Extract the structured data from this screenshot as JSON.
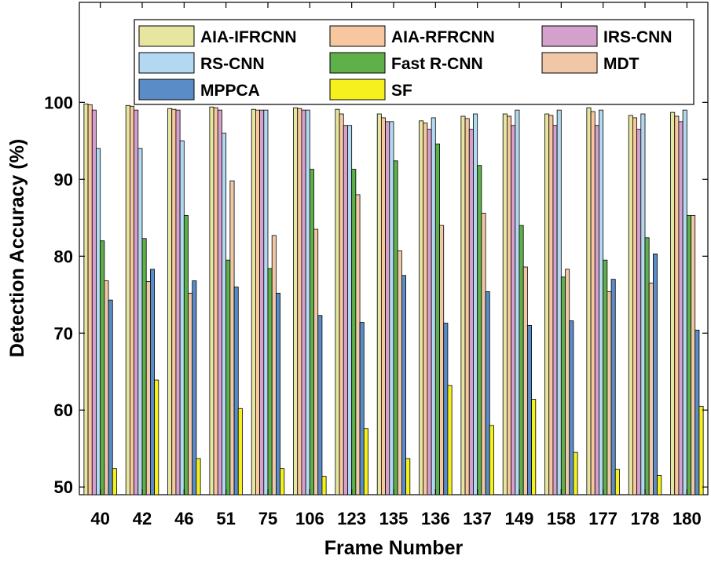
{
  "chart_data": {
    "type": "bar",
    "xlabel": "Frame Number",
    "ylabel": "Detection Accuracy (%)",
    "ylim": [
      49,
      113
    ],
    "yticks": [
      50,
      60,
      70,
      80,
      90,
      100
    ],
    "grid": false,
    "legend_position": "top",
    "categories": [
      "40",
      "42",
      "46",
      "51",
      "75",
      "106",
      "123",
      "135",
      "136",
      "137",
      "149",
      "158",
      "177",
      "178",
      "180"
    ],
    "series": [
      {
        "name": "AIA-IFRCNN",
        "color": "#e6e6a0",
        "values": [
          99.8,
          99.6,
          99.2,
          99.4,
          99.1,
          99.3,
          99.1,
          98.5,
          97.6,
          98.2,
          98.5,
          98.5,
          99.3,
          98.3,
          98.7
        ]
      },
      {
        "name": "AIA-RFRCNN",
        "color": "#f7c7a0",
        "values": [
          99.7,
          99.5,
          99.1,
          99.3,
          99.0,
          99.2,
          98.5,
          98.0,
          97.3,
          97.9,
          98.2,
          98.3,
          98.8,
          98.0,
          98.2
        ]
      },
      {
        "name": "IRS-CNN",
        "color": "#d4a0cc",
        "values": [
          99.0,
          99.0,
          99.0,
          99.0,
          99.0,
          99.0,
          97.0,
          97.5,
          96.5,
          96.5,
          97.0,
          97.0,
          97.0,
          96.5,
          97.5
        ]
      },
      {
        "name": "RS-CNN",
        "color": "#b3d9f2",
        "values": [
          94.0,
          94.0,
          95.0,
          96.0,
          99.0,
          99.0,
          97.0,
          97.5,
          98.0,
          98.5,
          99.0,
          99.0,
          99.0,
          98.5,
          99.0
        ]
      },
      {
        "name": "Fast R-CNN",
        "color": "#5fb04a",
        "values": [
          82.0,
          82.3,
          85.3,
          79.5,
          78.4,
          91.3,
          91.3,
          92.4,
          94.6,
          91.8,
          84.0,
          77.3,
          79.5,
          82.4,
          85.3
        ]
      },
      {
        "name": "MDT",
        "color": "#f0c8a8",
        "values": [
          76.8,
          76.7,
          75.2,
          89.8,
          82.7,
          83.5,
          88.0,
          80.7,
          84.0,
          85.6,
          78.6,
          78.3,
          75.4,
          76.5,
          85.3
        ]
      },
      {
        "name": "MPPCA",
        "color": "#5a8cc8",
        "values": [
          74.3,
          78.3,
          76.8,
          76.0,
          75.2,
          72.3,
          71.4,
          77.5,
          71.3,
          75.4,
          71.0,
          71.6,
          77.0,
          80.3,
          70.4
        ]
      },
      {
        "name": "SF",
        "color": "#f5f01e",
        "values": [
          52.4,
          63.9,
          53.7,
          60.2,
          52.4,
          51.4,
          57.6,
          53.7,
          63.2,
          58.0,
          61.4,
          54.5,
          52.3,
          51.5,
          60.5
        ]
      }
    ]
  }
}
